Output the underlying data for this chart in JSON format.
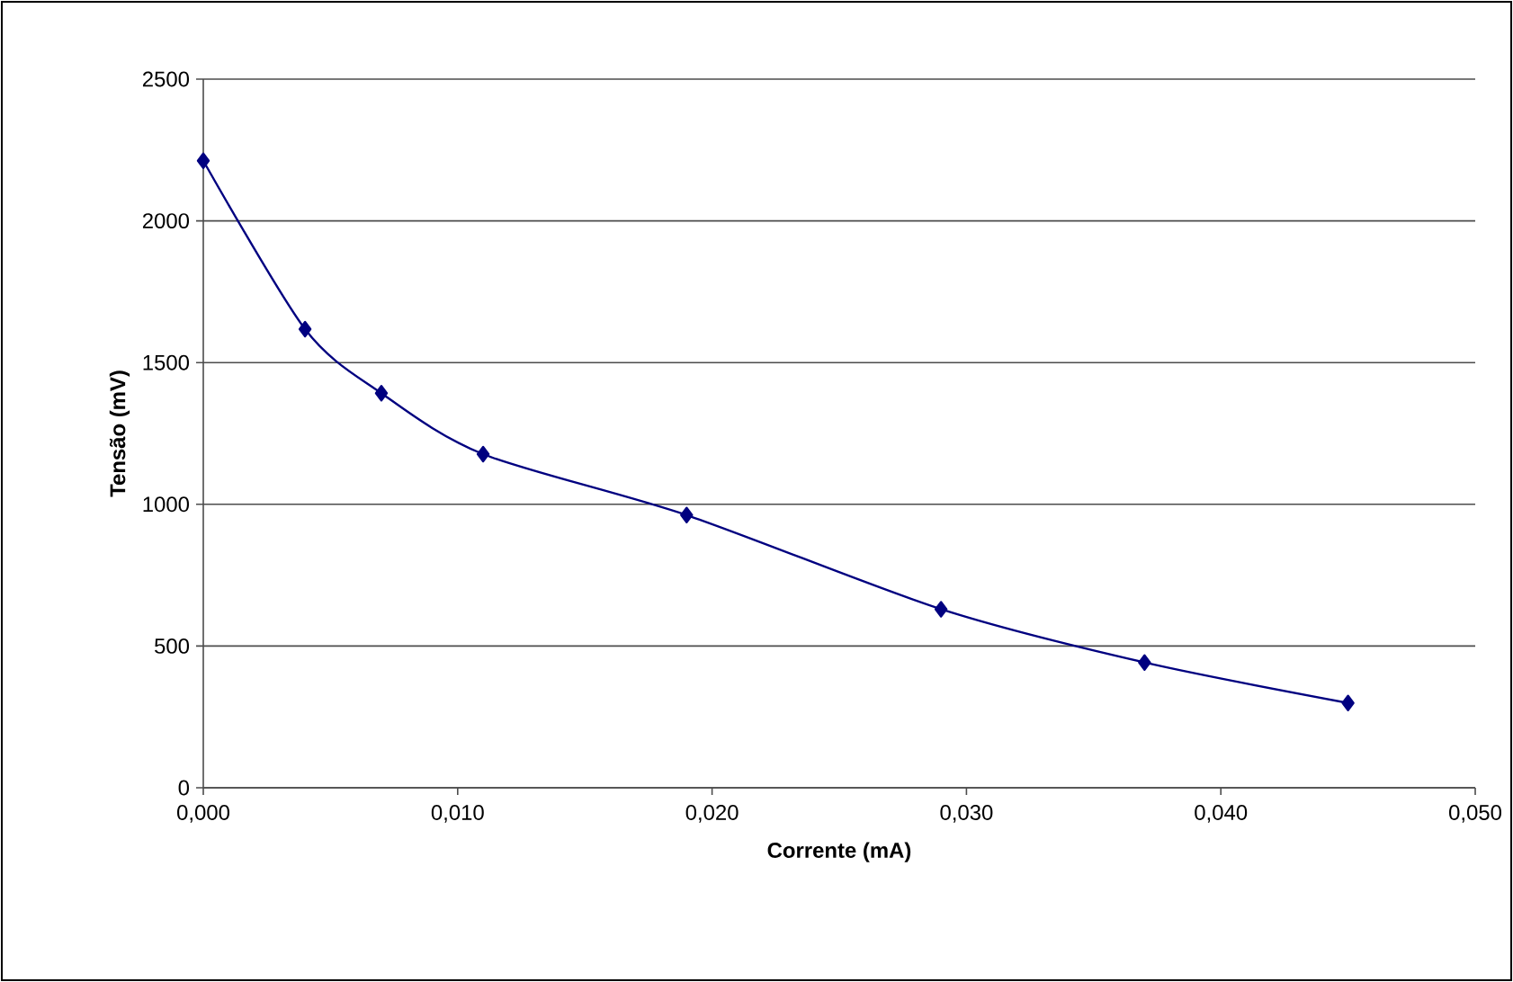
{
  "chart_data": {
    "type": "line",
    "xlabel": "Corrente (mA)",
    "ylabel": "Tensão (mV)",
    "x": [
      0.0,
      0.004,
      0.007,
      0.011,
      0.019,
      0.029,
      0.037,
      0.045
    ],
    "series": [
      {
        "color": "#000080",
        "values": [
          2212,
          1618,
          1392,
          1177,
          962,
          630,
          442,
          299
        ]
      }
    ],
    "xlim": [
      0,
      0.05
    ],
    "ylim": [
      0,
      2500
    ],
    "xticks": [
      {
        "value": 0,
        "label": "0,000"
      },
      {
        "value": 0.01,
        "label": "0,010"
      },
      {
        "value": 0.02,
        "label": "0,020"
      },
      {
        "value": 0.03,
        "label": "0,030"
      },
      {
        "value": 0.04,
        "label": "0,040"
      },
      {
        "value": 0.05,
        "label": "0,050"
      }
    ],
    "yticks": [
      0,
      500,
      1000,
      1500,
      2000,
      2500
    ],
    "grid": "y",
    "marker": "diamond",
    "line_style": "solid"
  }
}
